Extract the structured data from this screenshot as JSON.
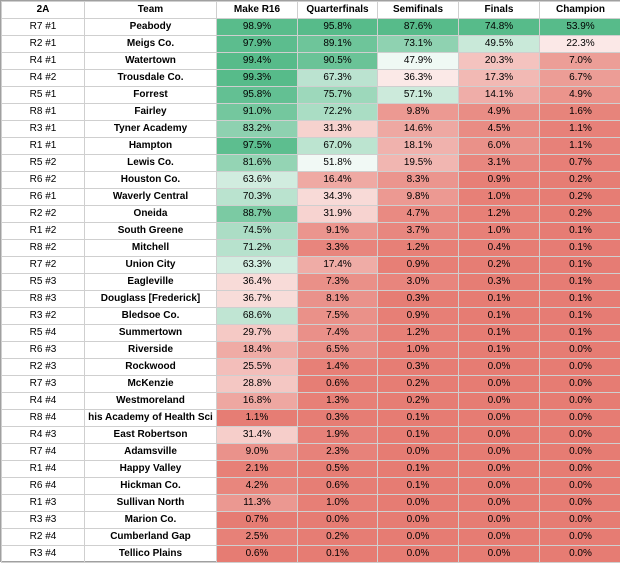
{
  "headers": [
    "2A",
    "Team",
    "Make R16",
    "Quarterfinals",
    "Semifinals",
    "Finals",
    "Champion"
  ],
  "colors": {
    "green": "#57bb8a",
    "white": "#ffffff",
    "red": "#e67c73"
  },
  "rows": [
    {
      "seed": "R7 #1",
      "team": "Peabody",
      "values": [
        "98.9%",
        "95.8%",
        "87.6%",
        "74.8%",
        "53.9%"
      ]
    },
    {
      "seed": "R2 #1",
      "team": "Meigs Co.",
      "values": [
        "97.9%",
        "89.1%",
        "73.1%",
        "49.5%",
        "22.3%"
      ]
    },
    {
      "seed": "R4 #1",
      "team": "Watertown",
      "values": [
        "99.4%",
        "90.5%",
        "47.9%",
        "20.3%",
        "7.0%"
      ]
    },
    {
      "seed": "R4 #2",
      "team": "Trousdale Co.",
      "values": [
        "99.3%",
        "67.3%",
        "36.3%",
        "17.3%",
        "6.7%"
      ]
    },
    {
      "seed": "R5 #1",
      "team": "Forrest",
      "values": [
        "95.8%",
        "75.7%",
        "57.1%",
        "14.1%",
        "4.9%"
      ]
    },
    {
      "seed": "R8 #1",
      "team": "Fairley",
      "values": [
        "91.0%",
        "72.2%",
        "9.8%",
        "4.9%",
        "1.6%"
      ]
    },
    {
      "seed": "R3 #1",
      "team": "Tyner Academy",
      "values": [
        "83.2%",
        "31.3%",
        "14.6%",
        "4.5%",
        "1.1%"
      ]
    },
    {
      "seed": "R1 #1",
      "team": "Hampton",
      "values": [
        "97.5%",
        "67.0%",
        "18.1%",
        "6.0%",
        "1.1%"
      ]
    },
    {
      "seed": "R5 #2",
      "team": "Lewis Co.",
      "values": [
        "81.6%",
        "51.8%",
        "19.5%",
        "3.1%",
        "0.7%"
      ]
    },
    {
      "seed": "R6 #2",
      "team": "Houston Co.",
      "values": [
        "63.6%",
        "16.4%",
        "8.3%",
        "0.9%",
        "0.2%"
      ]
    },
    {
      "seed": "R6 #1",
      "team": "Waverly Central",
      "values": [
        "70.3%",
        "34.3%",
        "9.8%",
        "1.0%",
        "0.2%"
      ]
    },
    {
      "seed": "R2 #2",
      "team": "Oneida",
      "values": [
        "88.7%",
        "31.9%",
        "4.7%",
        "1.2%",
        "0.2%"
      ]
    },
    {
      "seed": "R1 #2",
      "team": "South Greene",
      "values": [
        "74.5%",
        "9.1%",
        "3.7%",
        "1.0%",
        "0.1%"
      ]
    },
    {
      "seed": "R8 #2",
      "team": "Mitchell",
      "values": [
        "71.2%",
        "3.3%",
        "1.2%",
        "0.4%",
        "0.1%"
      ]
    },
    {
      "seed": "R7 #2",
      "team": "Union City",
      "values": [
        "63.3%",
        "17.4%",
        "0.9%",
        "0.2%",
        "0.1%"
      ]
    },
    {
      "seed": "R5 #3",
      "team": "Eagleville",
      "values": [
        "36.4%",
        "7.3%",
        "3.0%",
        "0.3%",
        "0.1%"
      ]
    },
    {
      "seed": "R8 #3",
      "team": "Douglass [Frederick]",
      "values": [
        "36.7%",
        "8.1%",
        "0.3%",
        "0.1%",
        "0.1%"
      ]
    },
    {
      "seed": "R3 #2",
      "team": "Bledsoe Co.",
      "values": [
        "68.6%",
        "7.5%",
        "0.9%",
        "0.1%",
        "0.1%"
      ]
    },
    {
      "seed": "R5 #4",
      "team": "Summertown",
      "values": [
        "29.7%",
        "7.4%",
        "1.2%",
        "0.1%",
        "0.1%"
      ]
    },
    {
      "seed": "R6 #3",
      "team": "Riverside",
      "values": [
        "18.4%",
        "6.5%",
        "1.0%",
        "0.1%",
        "0.0%"
      ]
    },
    {
      "seed": "R2 #3",
      "team": "Rockwood",
      "values": [
        "25.5%",
        "1.4%",
        "0.3%",
        "0.0%",
        "0.0%"
      ]
    },
    {
      "seed": "R7 #3",
      "team": "McKenzie",
      "values": [
        "28.8%",
        "0.6%",
        "0.2%",
        "0.0%",
        "0.0%"
      ]
    },
    {
      "seed": "R4 #4",
      "team": "Westmoreland",
      "values": [
        "16.8%",
        "1.3%",
        "0.2%",
        "0.0%",
        "0.0%"
      ]
    },
    {
      "seed": "R8 #4",
      "team": "his Academy of Health Sci",
      "values": [
        "1.1%",
        "0.3%",
        "0.1%",
        "0.0%",
        "0.0%"
      ]
    },
    {
      "seed": "R4 #3",
      "team": "East Robertson",
      "values": [
        "31.4%",
        "1.9%",
        "0.1%",
        "0.0%",
        "0.0%"
      ]
    },
    {
      "seed": "R7 #4",
      "team": "Adamsville",
      "values": [
        "9.0%",
        "2.3%",
        "0.0%",
        "0.0%",
        "0.0%"
      ]
    },
    {
      "seed": "R1 #4",
      "team": "Happy Valley",
      "values": [
        "2.1%",
        "0.5%",
        "0.1%",
        "0.0%",
        "0.0%"
      ]
    },
    {
      "seed": "R6 #4",
      "team": "Hickman Co.",
      "values": [
        "4.2%",
        "0.6%",
        "0.1%",
        "0.0%",
        "0.0%"
      ]
    },
    {
      "seed": "R1 #3",
      "team": "Sullivan North",
      "values": [
        "11.3%",
        "1.0%",
        "0.0%",
        "0.0%",
        "0.0%"
      ]
    },
    {
      "seed": "R3 #3",
      "team": "Marion Co.",
      "values": [
        "0.7%",
        "0.0%",
        "0.0%",
        "0.0%",
        "0.0%"
      ]
    },
    {
      "seed": "R2 #4",
      "team": "Cumberland Gap",
      "values": [
        "2.5%",
        "0.2%",
        "0.0%",
        "0.0%",
        "0.0%"
      ]
    },
    {
      "seed": "R3 #4",
      "team": "Tellico Plains",
      "values": [
        "0.6%",
        "0.1%",
        "0.0%",
        "0.0%",
        "0.0%"
      ]
    }
  ]
}
